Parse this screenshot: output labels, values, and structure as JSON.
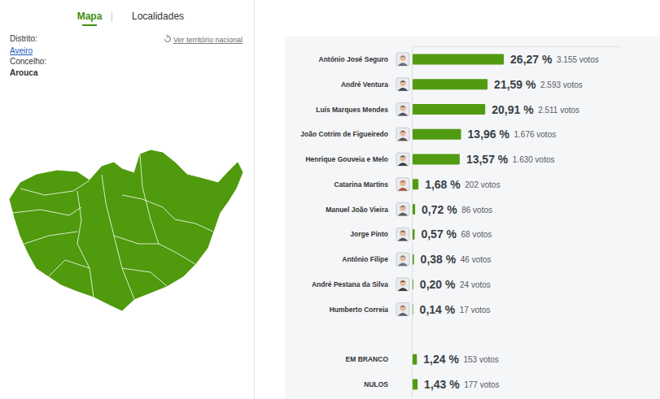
{
  "header": {
    "tabs": [
      "Mapa",
      "Localidades"
    ]
  },
  "location": {
    "district_label": "Distrito:",
    "district": "Aveiro",
    "municipality_label": "Concelho:",
    "municipality": "Arouca",
    "national_link": "Ver território nacional"
  },
  "chart_data": {
    "type": "bar",
    "orientation": "horizontal",
    "categories": [
      "António José Seguro",
      "André Ventura",
      "Luís Marques Mendes",
      "João Cotrim de Figueiredo",
      "Henrique Gouveia e Melo",
      "Catarina Martins",
      "Manuel João Vieira",
      "Jorge Pinto",
      "António Filipe",
      "André Pestana da Silva",
      "Humberto Correia",
      null,
      "EM BRANCO",
      "NULOS"
    ],
    "values": [
      26.27,
      21.59,
      20.91,
      13.96,
      13.57,
      1.68,
      0.72,
      0.57,
      0.38,
      0.2,
      0.14,
      null,
      1.24,
      1.43
    ],
    "value_labels": [
      "26,27 %",
      "21,59 %",
      "20,91 %",
      "13,96 %",
      "13,57 %",
      "1,68 %",
      "0,72 %",
      "0,57 %",
      "0,38 %",
      "0,20 %",
      "0,14 %",
      null,
      "1,24 %",
      "1,43 %"
    ],
    "votes_labels": [
      "3.155 votos",
      "2.593 votos",
      "2.511 votos",
      "1.676 votos",
      "1.630 votos",
      "202 votos",
      "86 votos",
      "68 votos",
      "46 votos",
      "24 votos",
      "17 votos",
      null,
      "153 votos",
      "177 votos"
    ],
    "color": "#519b11",
    "xlim": [
      0,
      60
    ],
    "xticks": [
      0
    ],
    "tick_labels": false,
    "data_labels": true
  }
}
